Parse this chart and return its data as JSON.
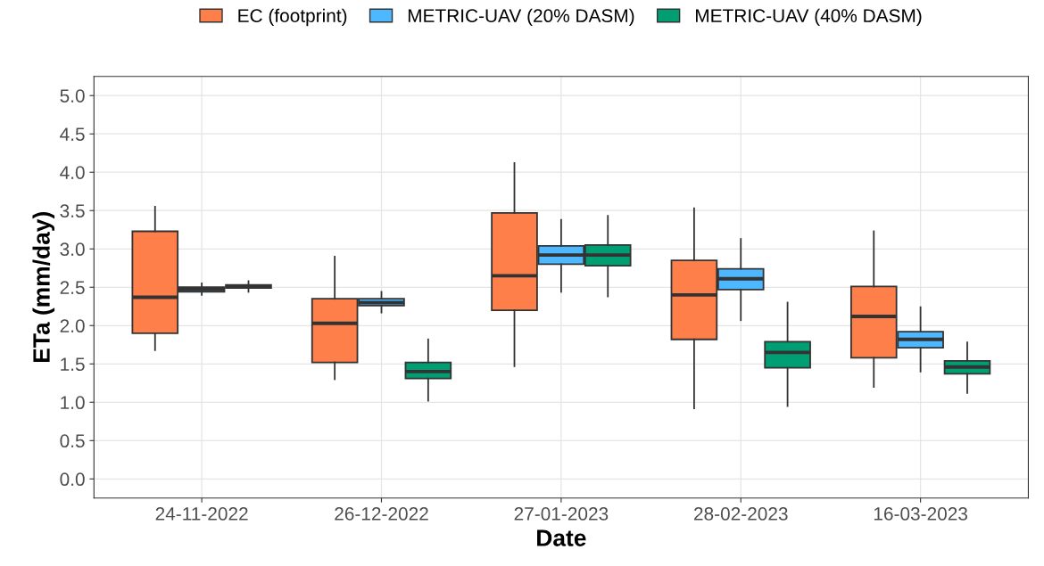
{
  "chart_data": {
    "type": "box",
    "xlabel": "Date",
    "ylabel": "ETa (mm/day)",
    "categories": [
      "24-11-2022",
      "26-12-2022",
      "27-01-2023",
      "28-02-2023",
      "16-03-2023"
    ],
    "ylim": [
      -0.25,
      5.25
    ],
    "yticks": [
      {
        "value": 0,
        "label": "0.0"
      },
      0.5,
      {
        "value": 1,
        "label": "1.0"
      },
      1.5,
      {
        "value": 2,
        "label": "2.0"
      },
      2.5,
      {
        "value": 3,
        "label": "3.0"
      },
      3.5,
      {
        "value": 4,
        "label": "4.0"
      },
      4.5,
      {
        "value": 5,
        "label": "5.0"
      }
    ],
    "grid": true,
    "legend": "top",
    "series": [
      {
        "name": "EC (footprint)",
        "color": "#fe7f4a",
        "boxes": [
          {
            "low": 1.68,
            "q1": 1.9,
            "median": 2.37,
            "q3": 3.23,
            "high": 3.55
          },
          {
            "low": 1.3,
            "q1": 1.52,
            "median": 2.03,
            "q3": 2.35,
            "high": 2.9
          },
          {
            "low": 1.47,
            "q1": 2.2,
            "median": 2.65,
            "q3": 3.47,
            "high": 4.12
          },
          {
            "low": 0.92,
            "q1": 1.82,
            "median": 2.4,
            "q3": 2.85,
            "high": 3.53
          },
          {
            "low": 1.2,
            "q1": 1.58,
            "median": 2.12,
            "q3": 2.51,
            "high": 3.23
          }
        ]
      },
      {
        "name": "METRIC-UAV (20% DASM)",
        "color": "#4db8ff",
        "boxes": [
          {
            "low": 2.4,
            "q1": 2.44,
            "median": 2.47,
            "q3": 2.5,
            "high": 2.55
          },
          {
            "low": 2.17,
            "q1": 2.26,
            "median": 2.3,
            "q3": 2.35,
            "high": 2.44
          },
          {
            "low": 2.44,
            "q1": 2.8,
            "median": 2.92,
            "q3": 3.04,
            "high": 3.38
          },
          {
            "low": 2.07,
            "q1": 2.47,
            "median": 2.61,
            "q3": 2.74,
            "high": 3.13
          },
          {
            "low": 1.4,
            "q1": 1.71,
            "median": 1.82,
            "q3": 1.92,
            "high": 2.24
          }
        ]
      },
      {
        "name": "METRIC-UAV (40% DASM)",
        "color": "#009e73",
        "boxes": [
          {
            "low": 2.44,
            "q1": 2.49,
            "median": 2.51,
            "q3": 2.53,
            "high": 2.58
          },
          {
            "low": 1.02,
            "q1": 1.31,
            "median": 1.4,
            "q3": 1.52,
            "high": 1.82
          },
          {
            "low": 2.38,
            "q1": 2.78,
            "median": 2.92,
            "q3": 3.05,
            "high": 3.43
          },
          {
            "low": 0.95,
            "q1": 1.45,
            "median": 1.65,
            "q3": 1.79,
            "high": 2.3
          },
          {
            "low": 1.12,
            "q1": 1.37,
            "median": 1.46,
            "q3": 1.54,
            "high": 1.78
          }
        ]
      }
    ]
  }
}
